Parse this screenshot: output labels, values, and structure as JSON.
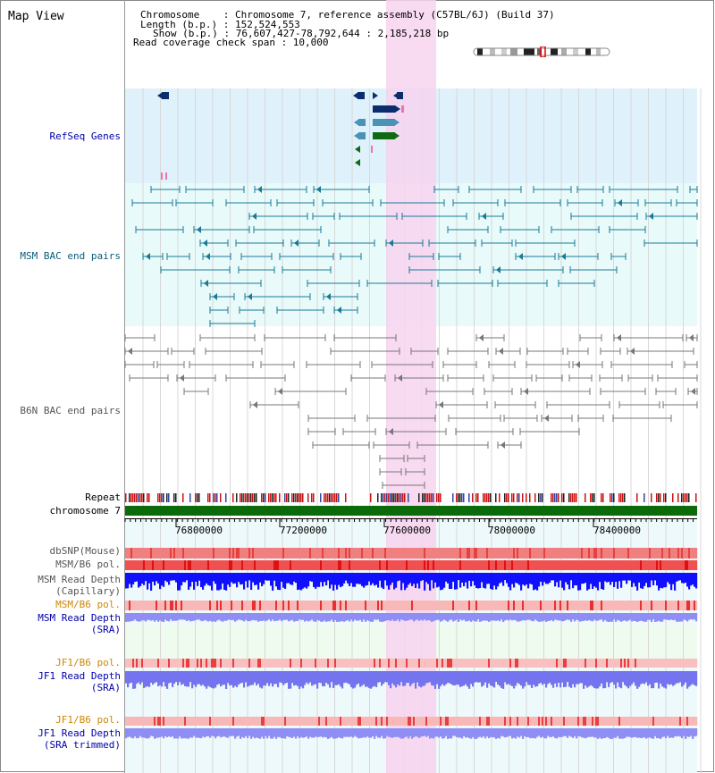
{
  "title": "Map View",
  "info": {
    "chromosome_line": "Chromosome    : Chromosome 7, reference assembly (C57BL/6J) (Build 37)",
    "length_line": "Length (b.p.) : 152,524,553",
    "show_line": "Show (b.p.) : 76,607,427-78,792,644 : 2,185,218 bp",
    "coverage_line": "Read coverage check span : 10,000"
  },
  "tracks": {
    "refseq": "RefSeq Genes",
    "msm_bac": "MSM BAC end pairs",
    "b6n_bac": "B6N BAC end pairs",
    "repeat": "Repeat",
    "chromosome": "chromosome 7",
    "dbsnp": "dbSNP(Mouse)",
    "msm_b6_pol": "MSM/B6 pol.",
    "msm_depth_cap_1": "MSM Read Depth",
    "msm_depth_cap_2": "(Capillary)",
    "msm_b6_pol_2": "MSM/B6 pol.",
    "msm_depth_sra_1": "MSM Read Depth",
    "msm_depth_sra_2": "(SRA)",
    "jf1_pol_1": "JF1/B6 pol.",
    "jf1_depth_sra_1": "JF1 Read Depth",
    "jf1_depth_sra_2": "(SRA)",
    "jf1_pol_2": "JF1/B6 pol.",
    "jf1_depth_trim_1": "JF1 Read Depth",
    "jf1_depth_trim_2": "(SRA trimmed)"
  },
  "ruler": {
    "ticks": [
      "76800000",
      "77200000",
      "77600000",
      "78000000",
      "78400000"
    ]
  },
  "colors": {
    "refseq_bg": "#dff1fb",
    "msm_bg": "#e8fafa",
    "b6n_bg": "#ffffff",
    "highlight": "#f7d3ef",
    "gene_dark": "#0b2d6e",
    "gene_mid": "#4a93b8",
    "gene_green": "#0e6b12",
    "msm_line": "#1a7a96",
    "b6n_line": "#777777",
    "chromosome_bar": "#0b6b0b",
    "depth_capillary": "#1010ff",
    "depth_sra": "#8e8ef4",
    "label_blue": "#0000aa",
    "label_orange": "#cc8800",
    "label_gray": "#555555"
  }
}
